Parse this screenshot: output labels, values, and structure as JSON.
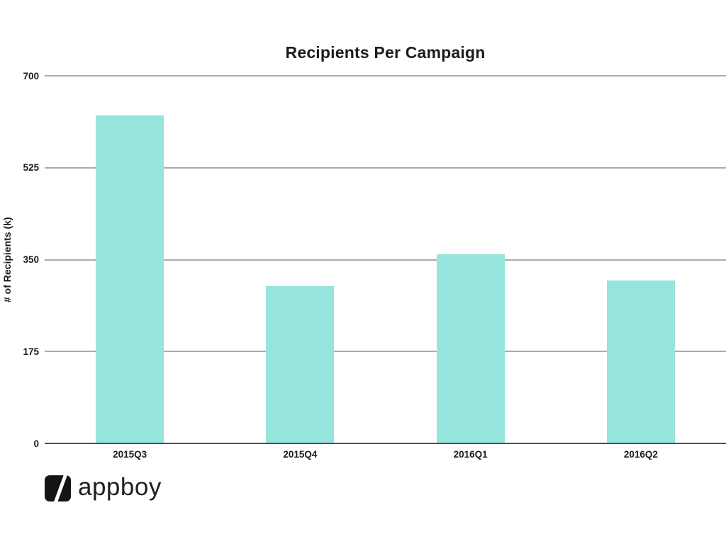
{
  "chart_data": {
    "type": "bar",
    "title": "Recipients Per Campaign",
    "ylabel": "# of Recipients (k)",
    "xlabel": "",
    "categories": [
      "2015Q3",
      "2015Q4",
      "2016Q1",
      "2016Q2"
    ],
    "values": [
      625,
      300,
      360,
      310
    ],
    "ylim": [
      0,
      700
    ],
    "yticks": [
      0,
      175,
      350,
      525,
      700
    ],
    "grid": true,
    "legend": false,
    "bar_color_name": "teal"
  },
  "branding": {
    "logo_text": "appboy"
  },
  "colors": {
    "background": "#ffffff",
    "bar": "#95e5dc",
    "gridline": "#ababab",
    "baseline": "#4f4f4f",
    "text": "#1b1b1b",
    "logo": "#141414"
  }
}
